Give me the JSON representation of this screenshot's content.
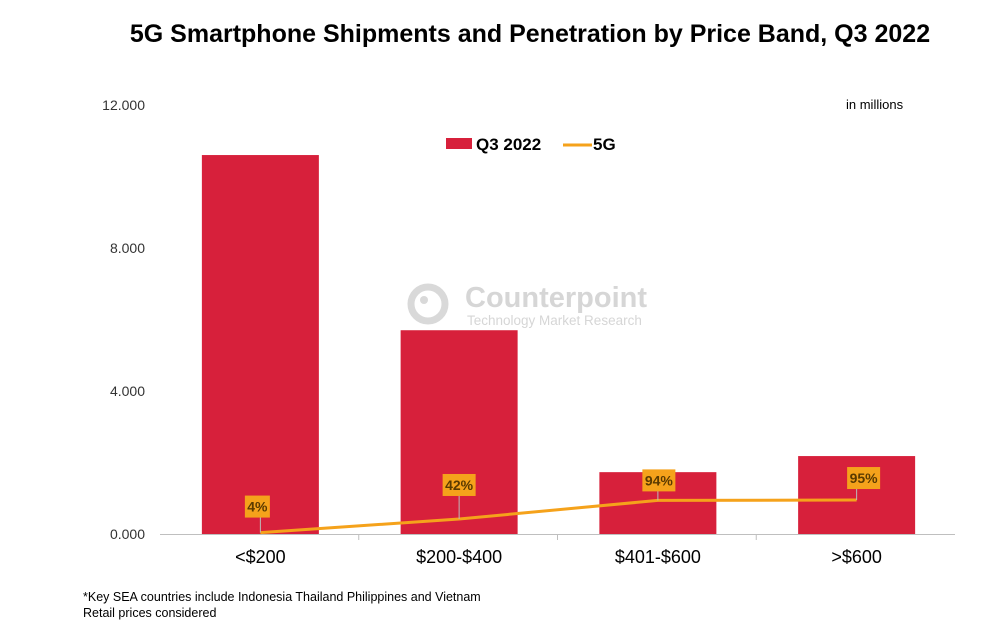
{
  "chart_data": {
    "type": "bar",
    "title": "5G Smartphone Shipments and Penetration by Price Band, Q3 2022",
    "units_note": "in millions",
    "categories": [
      "<$200",
      "$200-$400",
      "$401-$600",
      ">$600"
    ],
    "ylim": [
      0,
      12
    ],
    "yticks": [
      "0.000",
      "4.000",
      "8.000",
      "12.000"
    ],
    "ytick_values": [
      0,
      4,
      8,
      12
    ],
    "grid": false,
    "legend_placement": "top-center",
    "series": [
      {
        "name": "Q3 2022",
        "type": "bar",
        "color": "#d7203b",
        "values": [
          10.6,
          5.7,
          1.73,
          2.18
        ]
      },
      {
        "name": "5G",
        "type": "line",
        "color": "#f5a21b",
        "values": [
          0.04,
          0.42,
          0.94,
          0.95
        ],
        "labels": [
          "4%",
          "42%",
          "94%",
          "95%"
        ]
      }
    ],
    "watermark": {
      "brand": "Counterpoint",
      "tagline": "Technology Market Research"
    },
    "footnotes": [
      "*Key SEA countries include Indonesia Thailand Philippines and Vietnam",
      "Retail prices considered"
    ]
  }
}
